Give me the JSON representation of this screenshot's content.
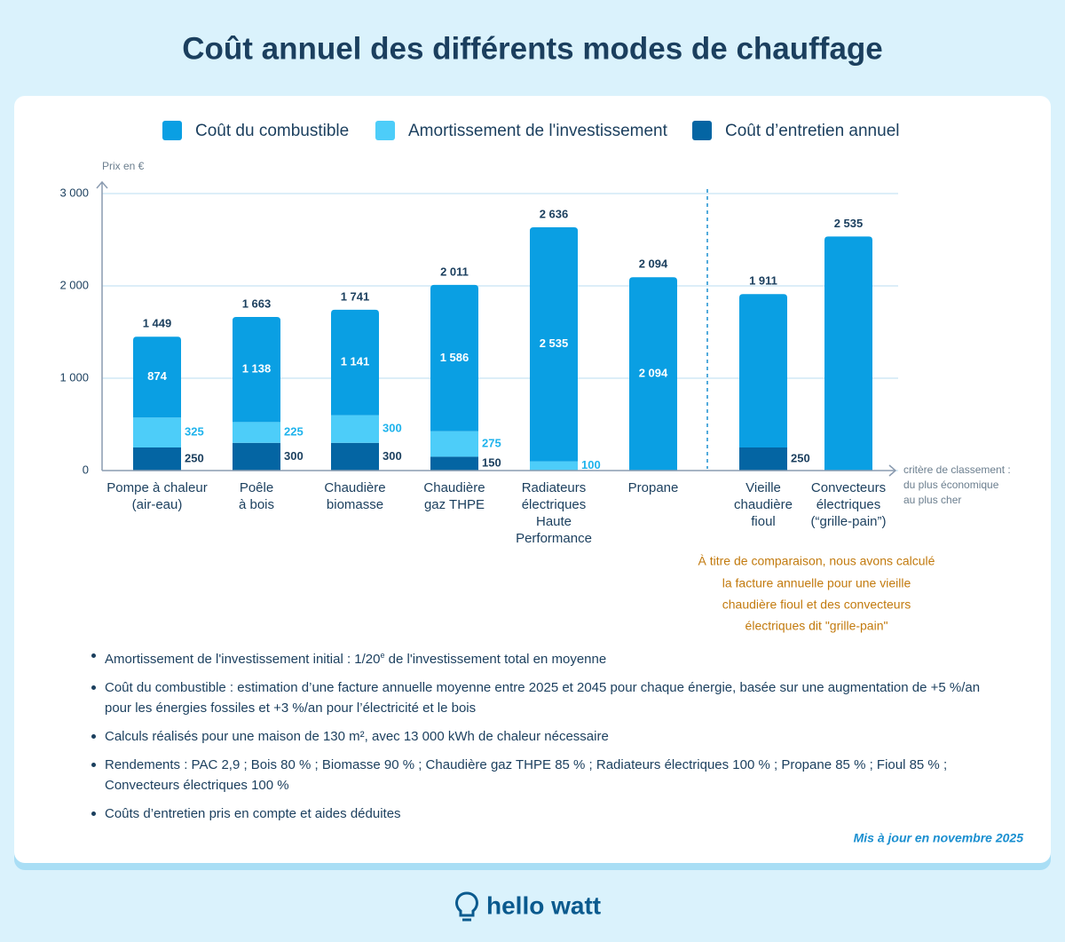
{
  "chart_data": {
    "type": "bar",
    "stacked": true,
    "title": "Coût annuel des différents modes de chauffage",
    "y_label": "Prix en €",
    "x_label": [
      "critère de classement :",
      "du plus économique",
      "au plus cher"
    ],
    "categories": [
      [
        "Pompe à chaleur",
        "(air-eau)"
      ],
      [
        "Poêle",
        "à bois"
      ],
      [
        "Chaudière",
        "biomasse"
      ],
      [
        "Chaudière",
        "gaz THPE"
      ],
      [
        "Radiateurs",
        "électriques",
        "Haute",
        "Performance"
      ],
      [
        "Propane"
      ],
      [
        "Vieille",
        "chaudière",
        "fioul"
      ],
      [
        "Convecteurs",
        "électriques",
        "(“grille-pain”)"
      ]
    ],
    "series": [
      {
        "name": "Coût du combustible",
        "color": "#0a9fe3",
        "label_color": "#ffffff",
        "values": [
          874,
          1138,
          1141,
          1586,
          2535,
          2094,
          1661,
          2535
        ],
        "value_labels": [
          "874",
          "1 138",
          "1 141",
          "1 586",
          "2 535",
          "2 094",
          null,
          null
        ]
      },
      {
        "name": "Amortissement de l'investissement",
        "color": "#4dcdf9",
        "label_color": "#1fb3ec",
        "values": [
          325,
          225,
          300,
          275,
          100,
          null,
          null,
          null
        ],
        "value_labels": [
          "325",
          "225",
          "300",
          "275",
          "100",
          null,
          null,
          null
        ]
      },
      {
        "name": "Coût d’entretien annuel",
        "color": "#0465a3",
        "label_color": "#1b3f5e",
        "values": [
          250,
          300,
          300,
          150,
          null,
          null,
          250,
          null
        ],
        "value_labels": [
          "250",
          "300",
          "300",
          "150",
          null,
          null,
          "250",
          null
        ]
      }
    ],
    "totals": {
      "values": [
        1449,
        1663,
        1741,
        2011,
        2636,
        2094,
        1911,
        2535
      ],
      "value_labels": [
        "1 449",
        "1 663",
        "1 741",
        "2 011",
        "2 636",
        "2 094",
        "1 911",
        "2 535"
      ]
    },
    "ylim": [
      0,
      3000
    ],
    "yticks": [
      0,
      {
        "value": 1000,
        "label": "1 000"
      },
      {
        "value": 2000,
        "label": "2 000"
      },
      {
        "value": 3000,
        "label": "3 000"
      }
    ],
    "grid": true,
    "annotation": [
      "À titre de comparaison, nous avons calculé",
      "la facture annuelle pour une vieille",
      "chaudière fioul et des convecteurs",
      "électriques dit \"grille-pain\""
    ]
  },
  "notes": [
    [
      "Amortissement de l'investissement initial : 1/20",
      "e",
      " de l'investissement total en moyenne"
    ],
    "Coût du combustible : estimation d’une facture annuelle moyenne entre 2025 et 2045 pour chaque énergie, basée sur une augmentation de +5 %/an pour les énergies fossiles et +3 %/an pour l’électricité et le bois",
    "Calculs réalisés pour une maison de 130 m², avec 13 000 kWh de chaleur nécessaire",
    "Rendements : PAC 2,9 ; Bois 80 % ; Biomasse 90 % ; Chaudière gaz THPE 85 % ; Radiateurs électriques 100 % ; Propane 85 % ; Fioul 85 % ; Convecteurs électriques 100 %",
    "Coûts d’entretien pris en compte et aides déduites"
  ],
  "updated": "Mis à jour en novembre 2025",
  "brand": "hello watt"
}
